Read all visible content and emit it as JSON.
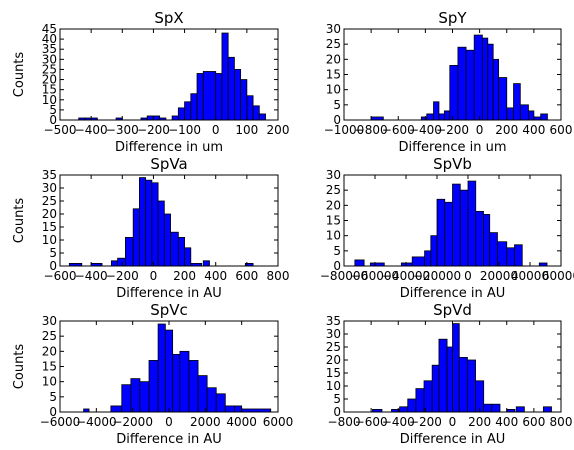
{
  "chart_data": [
    {
      "type": "bar",
      "title": "SpX",
      "xlabel": "Difference in um",
      "ylabel": "Counts",
      "xlim": [
        -500,
        200
      ],
      "ylim": [
        0,
        45
      ],
      "xticks": [
        -500,
        -400,
        -300,
        -200,
        -100,
        0,
        100,
        200
      ],
      "xtick_labels": [
        "−500",
        "−400",
        "−300",
        "−200",
        "−100",
        "0",
        "100",
        "200"
      ],
      "yticks": [
        0,
        5,
        10,
        15,
        20,
        25,
        30,
        35,
        40,
        45
      ],
      "ytick_labels": [
        "0",
        "5",
        "10",
        "15",
        "20",
        "25",
        "30",
        "35",
        "40",
        "45"
      ],
      "bar_color": "#0000ff",
      "bins": [
        [
          -440,
          -420,
          1
        ],
        [
          -420,
          -380,
          1
        ],
        [
          -320,
          -300,
          1
        ],
        [
          -240,
          -220,
          1
        ],
        [
          -220,
          -180,
          2
        ],
        [
          -180,
          -160,
          1
        ],
        [
          -140,
          -120,
          2
        ],
        [
          -120,
          -100,
          6
        ],
        [
          -100,
          -80,
          9
        ],
        [
          -80,
          -60,
          13
        ],
        [
          -60,
          -40,
          23
        ],
        [
          -40,
          0,
          24
        ],
        [
          0,
          20,
          23
        ],
        [
          20,
          40,
          43
        ],
        [
          40,
          60,
          31
        ],
        [
          60,
          80,
          25
        ],
        [
          80,
          100,
          20
        ],
        [
          100,
          120,
          12
        ],
        [
          120,
          140,
          7
        ],
        [
          140,
          160,
          3
        ]
      ]
    },
    {
      "type": "bar",
      "title": "SpY",
      "xlabel": "Difference in um",
      "ylabel": "",
      "xlim": [
        -1000,
        600
      ],
      "ylim": [
        0,
        30
      ],
      "xticks": [
        -1000,
        -800,
        -600,
        -400,
        -200,
        0,
        200,
        400,
        600
      ],
      "xtick_labels": [
        "−1000",
        "−800",
        "−600",
        "−400",
        "−200",
        "0",
        "200",
        "400",
        "600"
      ],
      "yticks": [
        0,
        5,
        10,
        15,
        20,
        25,
        30
      ],
      "ytick_labels": [
        "0",
        "5",
        "10",
        "15",
        "20",
        "25",
        "30"
      ],
      "bar_color": "#0000ff",
      "bins": [
        [
          -800,
          -710,
          1
        ],
        [
          -430,
          -390,
          1
        ],
        [
          -390,
          -340,
          2
        ],
        [
          -340,
          -300,
          6
        ],
        [
          -300,
          -260,
          2
        ],
        [
          -260,
          -220,
          3
        ],
        [
          -220,
          -160,
          18
        ],
        [
          -160,
          -100,
          24
        ],
        [
          -100,
          -40,
          23
        ],
        [
          -40,
          20,
          28
        ],
        [
          20,
          60,
          27
        ],
        [
          60,
          100,
          25
        ],
        [
          100,
          140,
          20
        ],
        [
          140,
          200,
          14
        ],
        [
          200,
          250,
          4
        ],
        [
          250,
          300,
          12
        ],
        [
          300,
          360,
          5
        ],
        [
          360,
          400,
          3
        ],
        [
          400,
          450,
          1
        ],
        [
          450,
          500,
          2
        ]
      ]
    },
    {
      "type": "bar",
      "title": "SpVa",
      "xlabel": "Difference in AU",
      "ylabel": "Counts",
      "xlim": [
        -600,
        800
      ],
      "ylim": [
        0,
        35
      ],
      "xticks": [
        -600,
        -400,
        -200,
        0,
        200,
        400,
        600,
        800
      ],
      "xtick_labels": [
        "−600",
        "−400",
        "−200",
        "0",
        "200",
        "400",
        "600",
        "800"
      ],
      "yticks": [
        0,
        5,
        10,
        15,
        20,
        25,
        30,
        35
      ],
      "ytick_labels": [
        "0",
        "5",
        "10",
        "15",
        "20",
        "25",
        "30",
        "35"
      ],
      "bar_color": "#0000ff",
      "bins": [
        [
          -540,
          -460,
          1
        ],
        [
          -400,
          -330,
          1
        ],
        [
          -270,
          -230,
          2
        ],
        [
          -230,
          -180,
          3
        ],
        [
          -180,
          -130,
          11
        ],
        [
          -130,
          -90,
          22
        ],
        [
          -90,
          -50,
          34
        ],
        [
          -50,
          -10,
          33
        ],
        [
          -10,
          30,
          32
        ],
        [
          30,
          70,
          25
        ],
        [
          70,
          110,
          20
        ],
        [
          110,
          160,
          13
        ],
        [
          160,
          200,
          11
        ],
        [
          200,
          240,
          7
        ],
        [
          240,
          310,
          1
        ],
        [
          320,
          360,
          2
        ],
        [
          590,
          640,
          1
        ]
      ]
    },
    {
      "type": "bar",
      "title": "SpVb",
      "xlabel": "Difference in AU",
      "ylabel": "",
      "xlim": [
        -80000,
        60000
      ],
      "ylim": [
        0,
        30
      ],
      "xticks": [
        -80000,
        -60000,
        -40000,
        -20000,
        0,
        20000,
        40000,
        60000
      ],
      "xtick_labels": [
        "−80000",
        "−60000",
        "−40000",
        "−20000",
        "0",
        "20000",
        "40000",
        "60000"
      ],
      "yticks": [
        0,
        5,
        10,
        15,
        20,
        25,
        30
      ],
      "ytick_labels": [
        "0",
        "5",
        "10",
        "15",
        "20",
        "25",
        "30"
      ],
      "bar_color": "#0000ff",
      "bins": [
        [
          -73000,
          -67000,
          2
        ],
        [
          -63000,
          -54000,
          1
        ],
        [
          -43000,
          -36000,
          1
        ],
        [
          -36000,
          -28000,
          3
        ],
        [
          -28000,
          -24000,
          5
        ],
        [
          -24000,
          -20000,
          10
        ],
        [
          -20000,
          -15000,
          22
        ],
        [
          -15000,
          -10000,
          21
        ],
        [
          -10000,
          -5000,
          27
        ],
        [
          -5000,
          0,
          25
        ],
        [
          0,
          5000,
          28
        ],
        [
          5000,
          10000,
          18
        ],
        [
          10000,
          14000,
          17
        ],
        [
          14000,
          19000,
          11
        ],
        [
          19000,
          25000,
          8
        ],
        [
          25000,
          30000,
          6
        ],
        [
          30000,
          35000,
          7
        ],
        [
          46000,
          51000,
          1
        ]
      ]
    },
    {
      "type": "bar",
      "title": "SpVc",
      "xlabel": "Difference in AU",
      "ylabel": "Counts",
      "xlim": [
        -6000,
        6000
      ],
      "ylim": [
        0,
        30
      ],
      "xticks": [
        -6000,
        -4000,
        -2000,
        0,
        2000,
        4000,
        6000
      ],
      "xtick_labels": [
        "−6000",
        "−4000",
        "−2000",
        "0",
        "2000",
        "4000",
        "6000"
      ],
      "yticks": [
        0,
        5,
        10,
        15,
        20,
        25,
        30
      ],
      "ytick_labels": [
        "0",
        "5",
        "10",
        "15",
        "20",
        "25",
        "30"
      ],
      "bar_color": "#0000ff",
      "bins": [
        [
          -4700,
          -4400,
          1
        ],
        [
          -4400,
          -3900,
          0
        ],
        [
          -3200,
          -2600,
          2
        ],
        [
          -2600,
          -2100,
          9
        ],
        [
          -2100,
          -1600,
          11
        ],
        [
          -1600,
          -1100,
          10
        ],
        [
          -1100,
          -600,
          17
        ],
        [
          -600,
          -200,
          29
        ],
        [
          -200,
          200,
          27
        ],
        [
          200,
          600,
          19
        ],
        [
          600,
          1100,
          20
        ],
        [
          1100,
          1600,
          17
        ],
        [
          1600,
          2100,
          12
        ],
        [
          2100,
          2600,
          8
        ],
        [
          2600,
          3100,
          6
        ],
        [
          3100,
          3600,
          2
        ],
        [
          3600,
          4000,
          2
        ],
        [
          4000,
          5600,
          1
        ]
      ]
    },
    {
      "type": "bar",
      "title": "SpVd",
      "xlabel": "Difference in AU",
      "ylabel": "",
      "xlim": [
        -800,
        800
      ],
      "ylim": [
        0,
        35
      ],
      "xticks": [
        -800,
        -600,
        -400,
        -200,
        0,
        200,
        400,
        600,
        800
      ],
      "xtick_labels": [
        "−800",
        "−600",
        "−400",
        "−200",
        "0",
        "200",
        "400",
        "600",
        "800"
      ],
      "yticks": [
        0,
        5,
        10,
        15,
        20,
        25,
        30,
        35
      ],
      "ytick_labels": [
        "0",
        "5",
        "10",
        "15",
        "20",
        "25",
        "30",
        "35"
      ],
      "bar_color": "#0000ff",
      "bins": [
        [
          -590,
          -520,
          1
        ],
        [
          -450,
          -390,
          1
        ],
        [
          -390,
          -330,
          2
        ],
        [
          -330,
          -270,
          5
        ],
        [
          -270,
          -210,
          9
        ],
        [
          -210,
          -150,
          12
        ],
        [
          -150,
          -100,
          18
        ],
        [
          -100,
          -40,
          28
        ],
        [
          -40,
          0,
          25
        ],
        [
          0,
          50,
          34
        ],
        [
          50,
          110,
          21
        ],
        [
          110,
          170,
          20
        ],
        [
          170,
          230,
          12
        ],
        [
          230,
          290,
          3
        ],
        [
          290,
          350,
          3
        ],
        [
          400,
          460,
          1
        ],
        [
          470,
          530,
          2
        ],
        [
          670,
          730,
          2
        ]
      ]
    }
  ]
}
